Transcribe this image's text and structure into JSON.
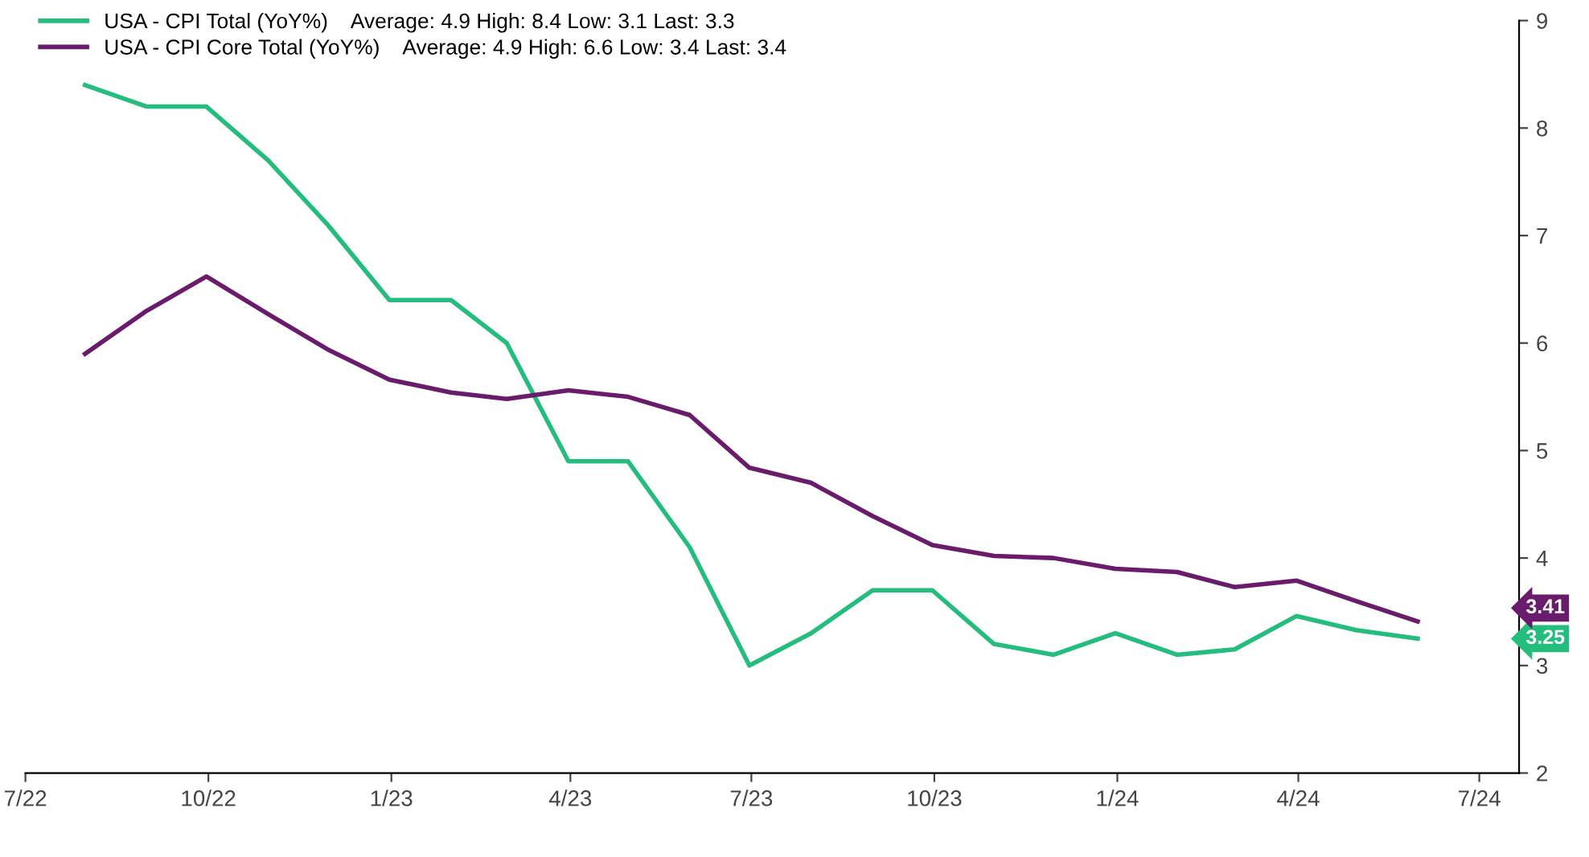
{
  "chart_data": {
    "type": "line",
    "x": [
      "2022-07-31",
      "2022-08-31",
      "2022-09-30",
      "2022-10-31",
      "2022-11-30",
      "2022-12-31",
      "2023-01-31",
      "2023-02-28",
      "2023-03-31",
      "2023-04-30",
      "2023-05-31",
      "2023-06-30",
      "2023-07-31",
      "2023-08-31",
      "2023-09-30",
      "2023-10-31",
      "2023-11-30",
      "2023-12-31",
      "2024-01-31",
      "2024-02-29",
      "2024-03-31",
      "2024-04-30",
      "2024-05-31"
    ],
    "series": [
      {
        "name": "USA - CPI Total (YoY%)    Average: 4.9 High: 8.4 Low: 3.1 Last: 3.3",
        "color": "#25bd7e",
        "values": [
          8.4,
          8.2,
          8.2,
          7.7,
          7.1,
          6.4,
          6.4,
          6.0,
          4.9,
          4.9,
          4.1,
          3.0,
          3.3,
          3.7,
          3.7,
          3.2,
          3.1,
          3.3,
          3.1,
          3.15,
          3.46,
          3.33,
          3.25
        ]
      },
      {
        "name": "USA - CPI Core Total (YoY%)    Average: 4.9 High: 6.6 Low: 3.4 Last: 3.4",
        "color": "#6b1b6b",
        "values": [
          5.9,
          6.3,
          6.62,
          6.27,
          5.94,
          5.66,
          5.54,
          5.48,
          5.56,
          5.5,
          5.33,
          4.84,
          4.7,
          4.39,
          4.12,
          4.02,
          4.0,
          3.9,
          3.87,
          3.73,
          3.79,
          3.6,
          3.41
        ]
      }
    ],
    "xlim": [
      "2022-07-01",
      "2024-07-21"
    ],
    "xticks": [
      {
        "value": "2022-07-01",
        "label": "7/22"
      },
      {
        "value": "2022-10-01",
        "label": "10/22"
      },
      {
        "value": "2023-01-01",
        "label": "1/23"
      },
      {
        "value": "2023-04-01",
        "label": "4/23"
      },
      {
        "value": "2023-07-01",
        "label": "7/23"
      },
      {
        "value": "2023-10-01",
        "label": "10/23"
      },
      {
        "value": "2024-01-01",
        "label": "1/24"
      },
      {
        "value": "2024-04-01",
        "label": "4/24"
      },
      {
        "value": "2024-07-01",
        "label": "7/24"
      }
    ],
    "ylim": [
      2,
      9
    ],
    "yticks": [
      2,
      3,
      4,
      5,
      6,
      7,
      8,
      9
    ],
    "grid": false,
    "legend": "top left",
    "marker": "none",
    "line_style": "solid",
    "annotations": [
      "3.25",
      "3.41"
    ]
  }
}
